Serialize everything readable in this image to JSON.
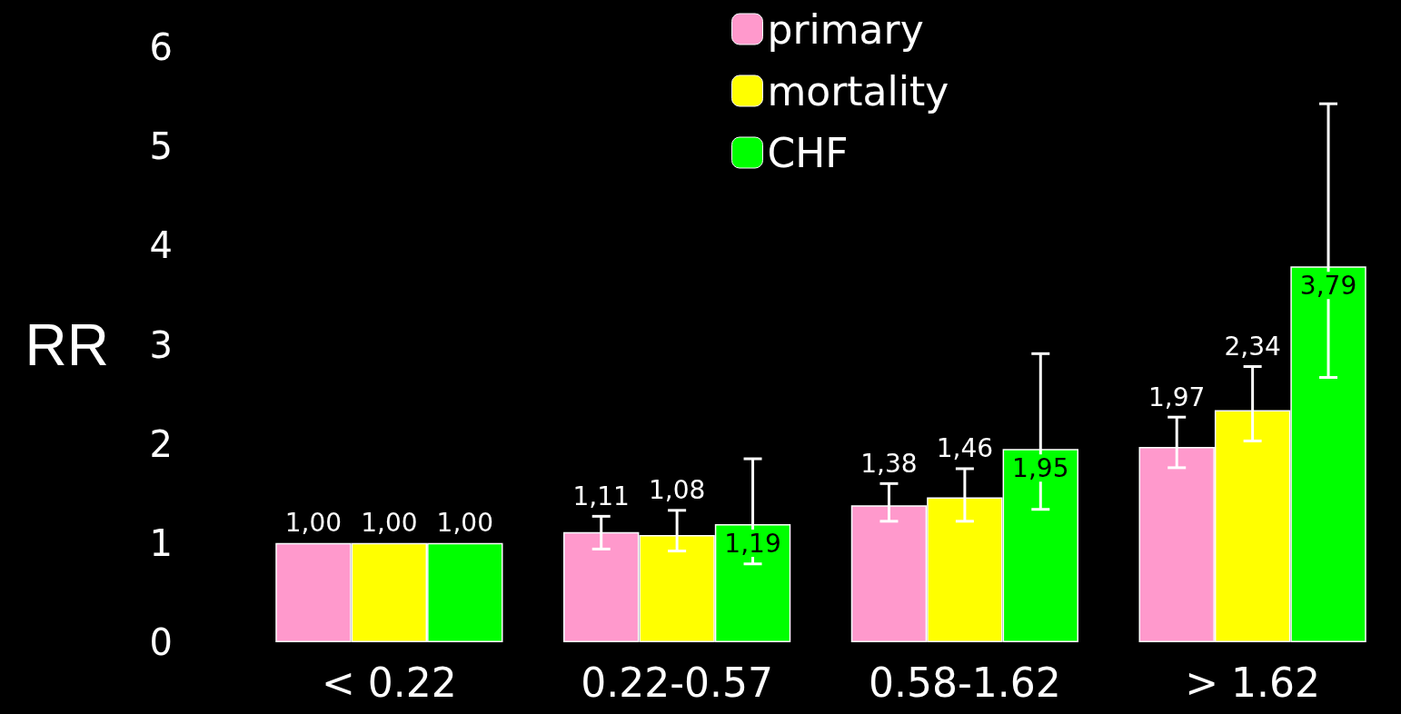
{
  "chart_data": {
    "type": "bar",
    "ylabel": "RR",
    "categories": [
      "< 0.22",
      "0.22-0.57",
      "0.58-1.62",
      "> 1.62"
    ],
    "series": [
      {
        "name": "primary",
        "color": "#ff99cc",
        "values": [
          1.0,
          1.11,
          1.38,
          1.97
        ],
        "value_labels": [
          "1,00",
          "1,11",
          "1,38",
          "1,97"
        ],
        "errors": [
          null,
          [
            0.94,
            1.27
          ],
          [
            1.22,
            1.6
          ],
          [
            1.76,
            2.27
          ]
        ]
      },
      {
        "name": "mortality",
        "color": "#ffff00",
        "values": [
          1.0,
          1.08,
          1.46,
          2.34
        ],
        "value_labels": [
          "1,00",
          "1,08",
          "1,46",
          "2,34"
        ],
        "errors": [
          null,
          [
            0.92,
            1.33
          ],
          [
            1.22,
            1.75
          ],
          [
            2.03,
            2.78
          ]
        ]
      },
      {
        "name": "CHF",
        "color": "#00ff00",
        "values": [
          1.0,
          1.19,
          1.95,
          3.79
        ],
        "value_labels": [
          "1,00",
          "1,19",
          "1,95",
          "3,79"
        ],
        "errors": [
          null,
          [
            0.79,
            1.85
          ],
          [
            1.34,
            2.91
          ],
          [
            2.67,
            5.43
          ]
        ]
      }
    ],
    "ylim": [
      0,
      6
    ],
    "yticks": [
      0,
      1,
      2,
      3,
      4,
      5,
      6
    ],
    "grid": false,
    "legend": "top"
  }
}
